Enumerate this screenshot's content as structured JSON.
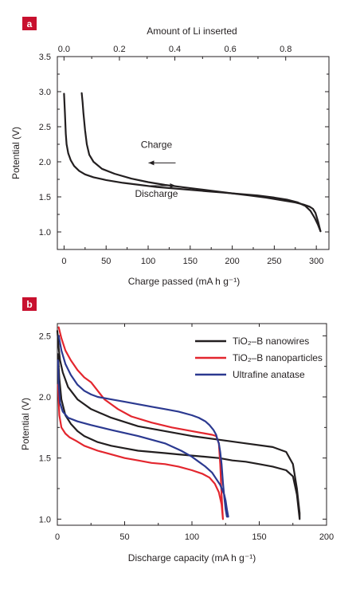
{
  "chart_data": [
    {
      "type": "line",
      "panel_label": "a",
      "xlabel": "Charge passed (mA h g⁻¹)",
      "ylabel": "Potential (V)",
      "top_xlabel": "Amount of Li inserted",
      "xlim": [
        -8,
        315
      ],
      "ylim": [
        0.75,
        3.5
      ],
      "top_xlim": [
        -0.024,
        0.956
      ],
      "x_ticks": [
        "0",
        "50",
        "100",
        "150",
        "200",
        "250",
        "300"
      ],
      "y_ticks": [
        "1.0",
        "1.5",
        "2.0",
        "2.5",
        "3.0",
        "3.5"
      ],
      "top_ticks": [
        "0.0",
        "0.2",
        "0.4",
        "0.6",
        "0.8"
      ],
      "annotations": [
        {
          "text": "Charge",
          "x": 108,
          "y": 2.2,
          "arrow": "left"
        },
        {
          "text": "Discharge",
          "x": 108,
          "y": 1.5,
          "arrow": "right"
        }
      ],
      "series": [
        {
          "color": "#231f20",
          "x": [
            0,
            1,
            2,
            3,
            5,
            8,
            12,
            18,
            25,
            35,
            50,
            70,
            90,
            110,
            130,
            150,
            170,
            190,
            210,
            230,
            250,
            265,
            278,
            287,
            293,
            298,
            302,
            305
          ],
          "y": [
            2.97,
            2.7,
            2.4,
            2.25,
            2.12,
            2.02,
            1.94,
            1.87,
            1.82,
            1.78,
            1.74,
            1.7,
            1.67,
            1.64,
            1.62,
            1.6,
            1.58,
            1.56,
            1.54,
            1.52,
            1.49,
            1.46,
            1.42,
            1.37,
            1.3,
            1.2,
            1.1,
            1.01
          ]
        },
        {
          "color": "#231f20",
          "x": [
            305,
            302,
            299,
            296,
            292,
            285,
            275,
            260,
            240,
            220,
            200,
            180,
            160,
            140,
            120,
            100,
            80,
            60,
            45,
            35,
            30,
            27,
            25,
            23,
            22,
            21
          ],
          "y": [
            1.01,
            1.15,
            1.27,
            1.33,
            1.36,
            1.39,
            1.42,
            1.45,
            1.49,
            1.52,
            1.55,
            1.58,
            1.61,
            1.64,
            1.67,
            1.71,
            1.76,
            1.83,
            1.9,
            2.0,
            2.1,
            2.25,
            2.45,
            2.7,
            2.85,
            2.98
          ]
        }
      ]
    },
    {
      "type": "line",
      "panel_label": "b",
      "xlabel": "Discharge capacity (mA h g⁻¹)",
      "ylabel": "Potential (V)",
      "xlim": [
        0,
        200
      ],
      "ylim": [
        0.95,
        2.6
      ],
      "x_ticks": [
        "0",
        "50",
        "100",
        "150",
        "200"
      ],
      "y_ticks": [
        "1.0",
        "1.5",
        "2.0",
        "2.5"
      ],
      "legend_position": "top-right",
      "series": [
        {
          "name": "TiO₂–B nanowires",
          "color": "#231f20",
          "x": [
            0,
            1,
            2,
            4,
            8,
            15,
            25,
            40,
            60,
            80,
            100,
            120,
            140,
            160,
            170,
            175,
            178,
            180,
            180,
            178,
            175,
            170,
            160,
            150,
            140,
            130,
            120,
            110,
            100,
            90,
            80,
            70,
            60,
            50,
            40,
            30,
            20,
            15,
            10,
            6,
            3,
            1.5,
            0.5
          ],
          "y": [
            2.54,
            2.4,
            2.3,
            2.2,
            2.08,
            1.98,
            1.9,
            1.83,
            1.76,
            1.72,
            1.68,
            1.65,
            1.62,
            1.59,
            1.55,
            1.45,
            1.25,
            1.05,
            1.0,
            1.2,
            1.35,
            1.4,
            1.43,
            1.45,
            1.47,
            1.48,
            1.5,
            1.51,
            1.52,
            1.53,
            1.54,
            1.55,
            1.56,
            1.58,
            1.6,
            1.63,
            1.68,
            1.72,
            1.78,
            1.85,
            1.98,
            2.15,
            2.35
          ]
        },
        {
          "name": "TiO₂–B nanoparticles",
          "color": "#e3262e",
          "x": [
            1,
            3,
            6,
            10,
            15,
            20,
            25,
            30,
            35,
            45,
            55,
            70,
            85,
            100,
            110,
            115,
            118,
            120,
            121,
            122,
            123,
            122,
            120,
            117,
            113,
            108,
            100,
            90,
            80,
            70,
            60,
            50,
            40,
            30,
            20,
            14,
            9,
            6,
            3,
            1.5,
            0.5
          ],
          "y": [
            2.57,
            2.48,
            2.38,
            2.3,
            2.22,
            2.16,
            2.12,
            2.05,
            1.98,
            1.9,
            1.84,
            1.79,
            1.75,
            1.72,
            1.7,
            1.69,
            1.68,
            1.62,
            1.45,
            1.2,
            1.0,
            1.12,
            1.22,
            1.29,
            1.34,
            1.37,
            1.4,
            1.43,
            1.45,
            1.46,
            1.48,
            1.5,
            1.53,
            1.56,
            1.6,
            1.64,
            1.67,
            1.7,
            1.75,
            1.85,
            2.1
          ]
        },
        {
          "name": "Ultrafine anatase",
          "color": "#2b3990",
          "x": [
            1,
            3,
            6,
            10,
            15,
            20,
            25,
            30,
            40,
            50,
            60,
            70,
            80,
            90,
            100,
            105,
            110,
            113,
            116,
            118,
            119,
            120,
            121,
            122,
            123,
            124,
            125,
            126,
            127,
            126,
            125,
            124,
            121,
            118,
            115,
            110,
            105,
            100,
            92,
            80,
            60,
            40,
            25,
            15,
            8,
            4,
            2,
            1,
            0.5
          ],
          "y": [
            2.5,
            2.38,
            2.27,
            2.18,
            2.1,
            2.05,
            2.02,
            2.0,
            1.98,
            1.96,
            1.94,
            1.92,
            1.9,
            1.88,
            1.85,
            1.83,
            1.8,
            1.77,
            1.73,
            1.69,
            1.65,
            1.62,
            1.55,
            1.45,
            1.3,
            1.18,
            1.08,
            1.02,
            1.02,
            1.08,
            1.15,
            1.2,
            1.28,
            1.33,
            1.38,
            1.43,
            1.47,
            1.51,
            1.56,
            1.62,
            1.68,
            1.73,
            1.77,
            1.8,
            1.83,
            1.88,
            1.95,
            2.1,
            2.3
          ]
        }
      ]
    }
  ]
}
